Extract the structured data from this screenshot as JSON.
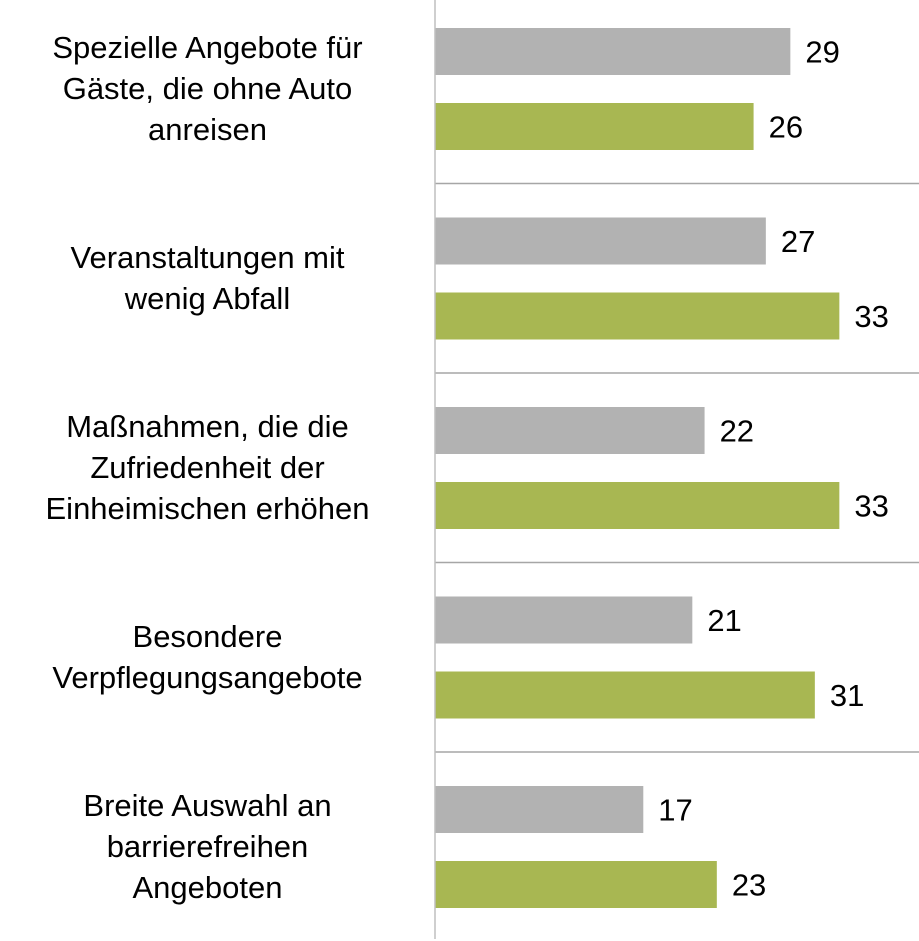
{
  "chart_data": {
    "type": "hbar",
    "categories": [
      "Spezielle Angebote für\nGäste, die ohne Auto\nanreisen",
      "Veranstaltungen mit\nwenig Abfall",
      "Maßnahmen, die die\nZufriedenheit der\nEinheimischen erhöhen",
      "Besondere\nVerpflegungsangebote",
      "Breite Auswahl an\nbarrierefreihen\nAngeboten"
    ],
    "series": [
      {
        "color": "#b2b2b2",
        "values": [
          29,
          27,
          22,
          21,
          17
        ]
      },
      {
        "color": "#a8b752",
        "values": [
          26,
          33,
          33,
          31,
          23
        ]
      }
    ],
    "xlim": [
      0,
      39.5
    ]
  }
}
